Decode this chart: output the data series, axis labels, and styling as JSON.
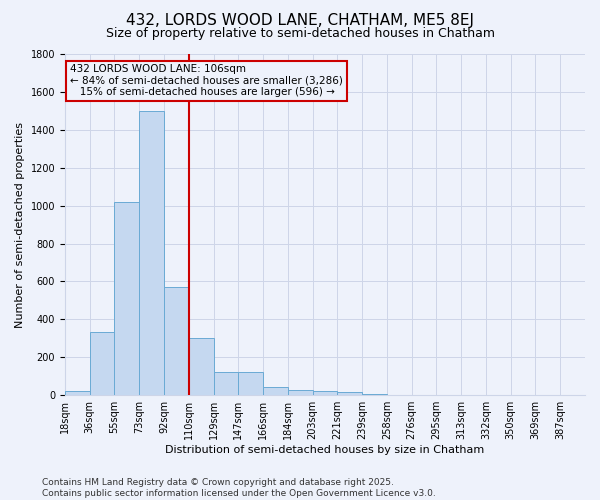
{
  "title": "432, LORDS WOOD LANE, CHATHAM, ME5 8EJ",
  "subtitle": "Size of property relative to semi-detached houses in Chatham",
  "xlabel": "Distribution of semi-detached houses by size in Chatham",
  "ylabel": "Number of semi-detached properties",
  "bin_labels": [
    "18sqm",
    "36sqm",
    "55sqm",
    "73sqm",
    "92sqm",
    "110sqm",
    "129sqm",
    "147sqm",
    "166sqm",
    "184sqm",
    "203sqm",
    "221sqm",
    "239sqm",
    "258sqm",
    "276sqm",
    "295sqm",
    "313sqm",
    "332sqm",
    "350sqm",
    "369sqm",
    "387sqm"
  ],
  "bar_values": [
    22,
    335,
    1020,
    1500,
    570,
    300,
    120,
    120,
    45,
    30,
    20,
    15,
    5,
    0,
    0,
    0,
    0,
    0,
    0,
    0,
    0
  ],
  "bar_color": "#c5d8f0",
  "bar_edge_color": "#6aaad4",
  "vline_color": "#cc0000",
  "ylim": [
    0,
    1800
  ],
  "yticks": [
    0,
    200,
    400,
    600,
    800,
    1000,
    1200,
    1400,
    1600,
    1800
  ],
  "annotation_line1": "432 LORDS WOOD LANE: 106sqm",
  "annotation_line2": "← 84% of semi-detached houses are smaller (3,286)",
  "annotation_line3": "   15% of semi-detached houses are larger (596) →",
  "footer_line1": "Contains HM Land Registry data © Crown copyright and database right 2025.",
  "footer_line2": "Contains public sector information licensed under the Open Government Licence v3.0.",
  "bg_color": "#eef2fb",
  "grid_color": "#cdd5e8",
  "title_fontsize": 11,
  "subtitle_fontsize": 9,
  "axis_label_fontsize": 8,
  "tick_fontsize": 7,
  "annotation_fontsize": 7.5,
  "footer_fontsize": 6.5
}
